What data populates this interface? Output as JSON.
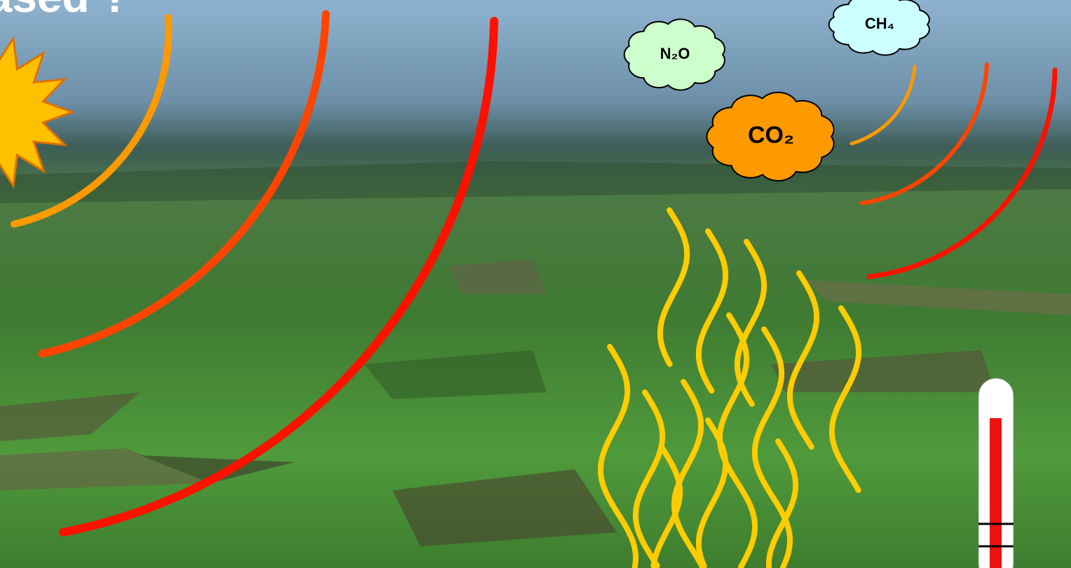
{
  "heading": "Based ?",
  "gases": {
    "n2o": "N₂O",
    "ch4": "CH₄",
    "co2": "CO₂"
  }
}
